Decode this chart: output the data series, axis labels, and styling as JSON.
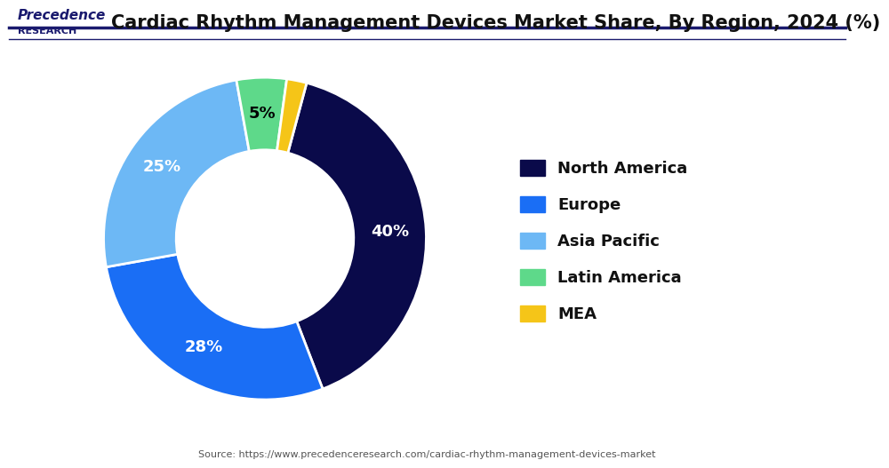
{
  "title": "Cardiac Rhythm Management Devices Market Share, By Region, 2024 (%)",
  "segments": [
    {
      "label": "North America",
      "value": 40,
      "color": "#0a0a4a",
      "text_color": "white"
    },
    {
      "label": "Europe",
      "value": 28,
      "color": "#1a6ef5",
      "text_color": "white"
    },
    {
      "label": "Asia Pacific",
      "value": 25,
      "color": "#6db8f5",
      "text_color": "white"
    },
    {
      "label": "Latin America",
      "value": 5,
      "color": "#5ed98a",
      "text_color": "black"
    },
    {
      "label": "MEA",
      "value": 2,
      "color": "#f5c518",
      "text_color": "black"
    }
  ],
  "source_text": "Source: https://www.precedenceresearch.com/cardiac-rhythm-management-devices-market",
  "background_color": "#ffffff",
  "header_line_color": "#1a1a6e",
  "title_fontsize": 15,
  "legend_fontsize": 13,
  "label_fontsize": 13,
  "start_angle": 75
}
